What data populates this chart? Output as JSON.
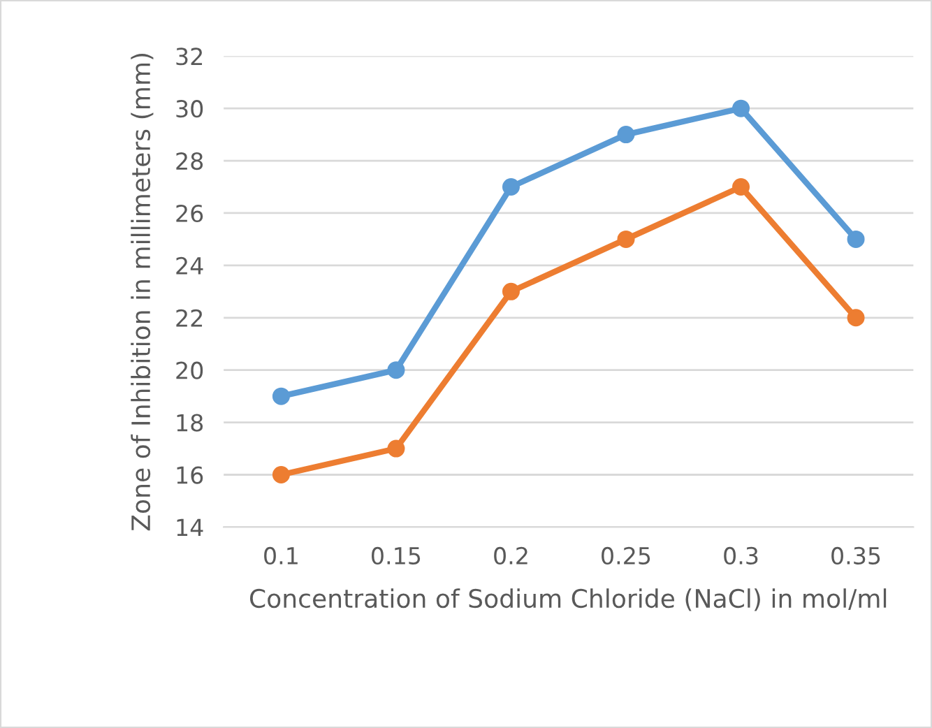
{
  "chart_data": {
    "type": "line",
    "xlabel": "Concentration of Sodium Chloride (NaCl) in mol/ml",
    "ylabel": "Zone of Inhibition in millimeters (mm)",
    "categories": [
      "0.1",
      "0.15",
      "0.2",
      "0.25",
      "0.3",
      "0.35"
    ],
    "series": [
      {
        "color": "#5b9bd5",
        "values": [
          19,
          20,
          27,
          29,
          30,
          25
        ]
      },
      {
        "color": "#ed7d31",
        "values": [
          16,
          17,
          23,
          25,
          27,
          22
        ]
      }
    ],
    "ylim": [
      14,
      32
    ],
    "yticks": [
      14,
      16,
      18,
      20,
      22,
      24,
      26,
      28,
      30,
      32
    ],
    "grid": "y",
    "legend": false,
    "marker": "circle",
    "line_style": "solid"
  }
}
